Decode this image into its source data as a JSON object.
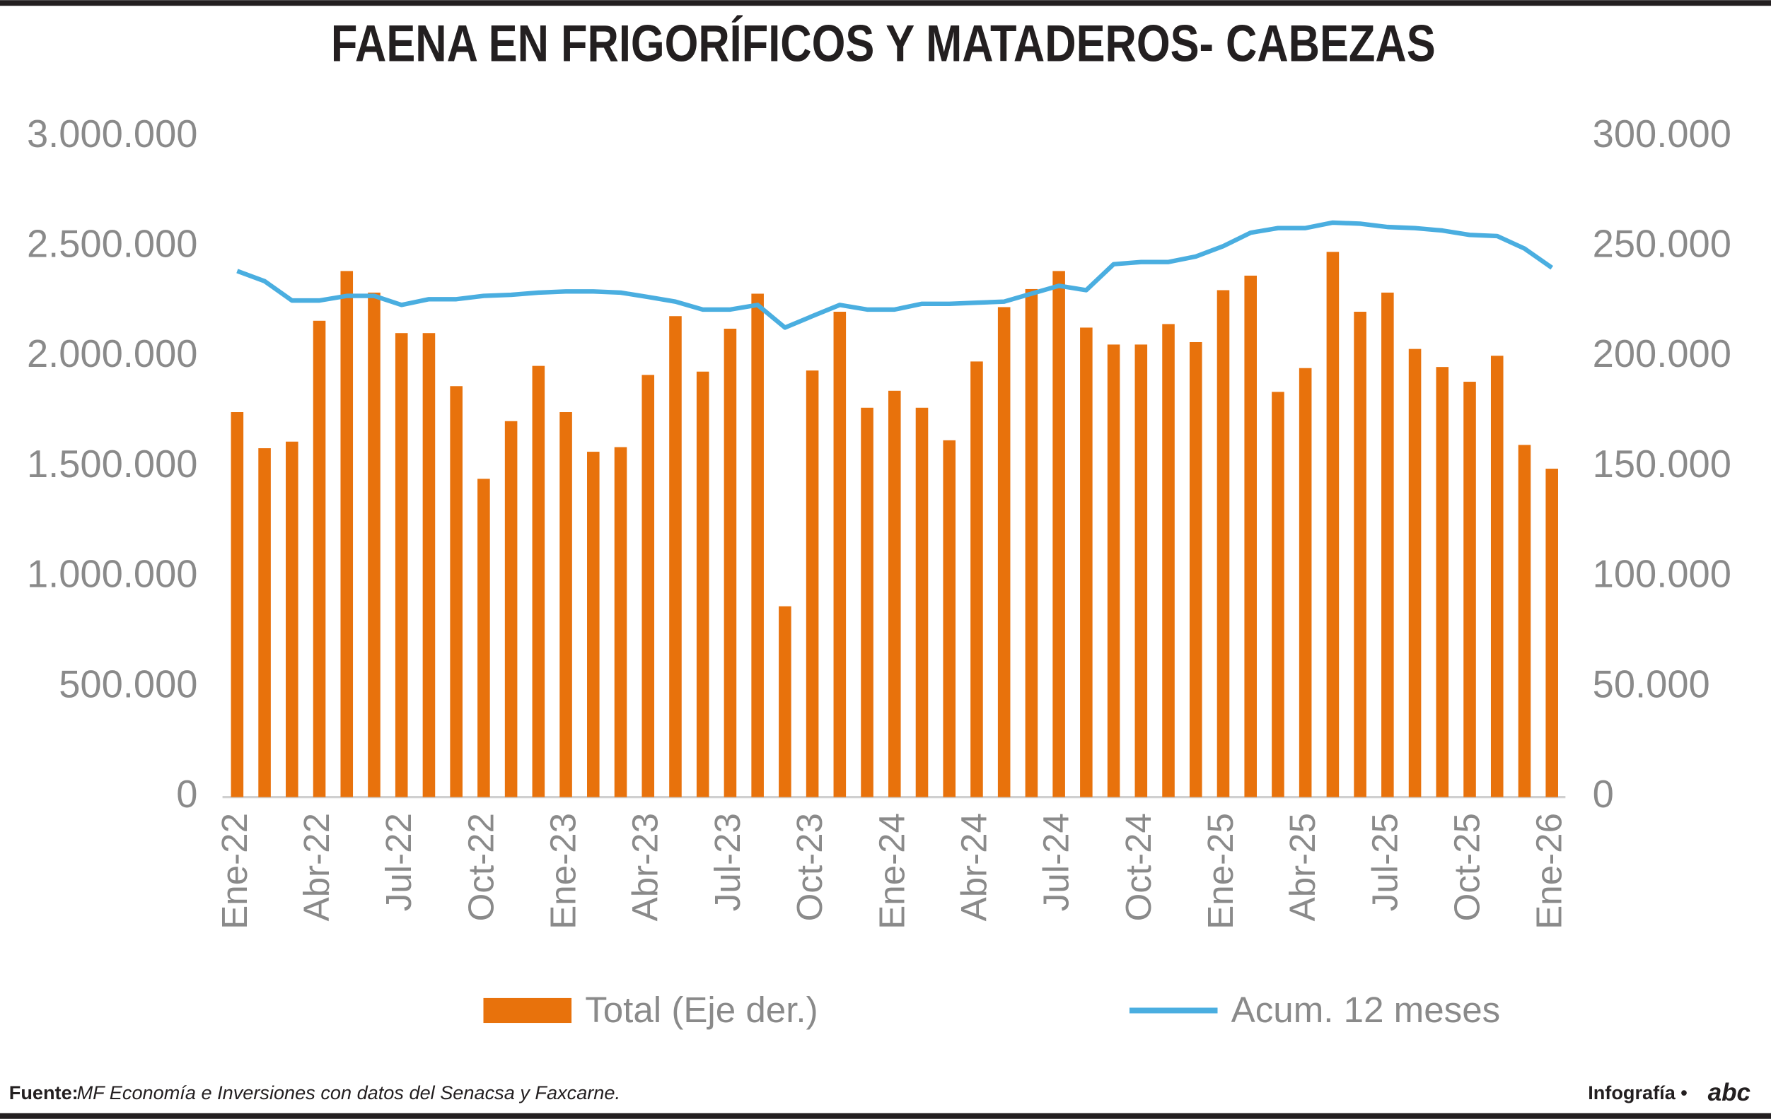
{
  "chart_data": {
    "type": "bar",
    "title": "FAENA EN FRIGORÍFICOS Y MATADEROS- CABEZAS",
    "categories": [
      "Ene-22",
      null,
      null,
      "Abr-22",
      null,
      null,
      "Jul-22",
      null,
      null,
      "Oct-22",
      null,
      null,
      "Ene-23",
      null,
      null,
      "Abr-23",
      null,
      null,
      "Jul-23",
      null,
      null,
      "Oct-23",
      null,
      null,
      "Ene-24",
      null,
      null,
      "Abr-24",
      null,
      null,
      "Jul-24",
      null,
      null,
      "Oct-24",
      null,
      null,
      "Ene-25",
      null,
      null,
      "Abr-25",
      null,
      null,
      "Jul-25",
      null,
      null,
      "Oct-25",
      null,
      null,
      "Ene-26"
    ],
    "series": [
      {
        "name": "Total (Eje der.)",
        "type": "bar",
        "axis": "y2",
        "color": "#e8720c",
        "values": [
          174900,
          158500,
          161500,
          216400,
          239000,
          229200,
          210800,
          210800,
          186700,
          144600,
          170800,
          195900,
          174900,
          156900,
          159000,
          191800,
          218500,
          193300,
          212800,
          228700,
          86700,
          193800,
          220500,
          176900,
          184600,
          176900,
          162100,
          197900,
          222600,
          230800,
          239000,
          213300,
          205600,
          205600,
          214900,
          206700,
          230300,
          236900,
          184100,
          194900,
          247700,
          220500,
          229200,
          203600,
          195400,
          188700,
          200500,
          160000,
          149200
        ]
      },
      {
        "name": "Acum. 12 meses",
        "type": "line",
        "axis": "y",
        "color": "#4aaee0",
        "values": [
          2390000,
          2344000,
          2256000,
          2256000,
          2277000,
          2277000,
          2236000,
          2262000,
          2262000,
          2277000,
          2282000,
          2292000,
          2297000,
          2297000,
          2292000,
          2272000,
          2251000,
          2215000,
          2215000,
          2236000,
          2133000,
          2185000,
          2236000,
          2215000,
          2215000,
          2241000,
          2241000,
          2246000,
          2251000,
          2287000,
          2323000,
          2303000,
          2421000,
          2431000,
          2431000,
          2456000,
          2503000,
          2564000,
          2585000,
          2585000,
          2610000,
          2605000,
          2590000,
          2585000,
          2574000,
          2554000,
          2549000,
          2492000,
          2405000
        ]
      }
    ],
    "ylim": [
      0,
      3000000
    ],
    "yticks": [
      0,
      {
        "value": 500000,
        "label": "500.000"
      },
      {
        "value": 1000000,
        "label": "1.000.000"
      },
      {
        "value": 1500000,
        "label": "1.500.000"
      },
      {
        "value": 2000000,
        "label": "2.000.000"
      },
      {
        "value": 2500000,
        "label": "2.500.000"
      },
      {
        "value": 3000000,
        "label": "3.000.000"
      }
    ],
    "y2lim": [
      0,
      300000
    ],
    "y2ticks": [
      0,
      {
        "value": 50000,
        "label": "50.000"
      },
      {
        "value": 100000,
        "label": "100.000"
      },
      {
        "value": 150000,
        "label": "150.000"
      },
      {
        "value": 200000,
        "label": "200.000"
      },
      {
        "value": 250000,
        "label": "250.000"
      },
      {
        "value": 300000,
        "label": "300.000"
      }
    ],
    "grid": false,
    "legend": "bottom"
  },
  "footer": {
    "source_label": "Fuente:",
    "source": "MF Economía e Inversiones con datos del Senacsa y Faxcarne.",
    "credit": "Infografía •",
    "logo": "abc"
  }
}
